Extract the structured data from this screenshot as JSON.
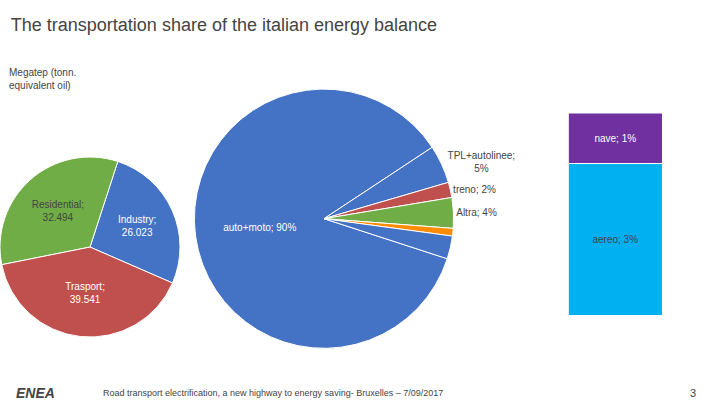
{
  "chart_data": [
    {
      "type": "pie",
      "title": "The transportation share of the italian energy balance",
      "annotations": [
        "Megatep (tonn.\nequivalent oil)",
        "ENEA",
        "Road transport electrification, a new highway to energy saving- Bruxelles – 7/09/2017",
        "3"
      ],
      "values": [
        26.023,
        32.494,
        39.541
      ],
      "value_labels": [
        "Industry;\n26.023",
        "Residential;\n32.494",
        "Trasport;\n39.541"
      ],
      "colors": [
        "#4472c4",
        "#70ad47",
        "#c0504d"
      ],
      "data_labels": true
    },
    {
      "type": "pie",
      "values": [
        90,
        5,
        2,
        4,
        1,
        3
      ],
      "value_labels": [
        "auto+moto; 90%",
        "TPL+autolinee;\n5%",
        "treno; 2%",
        "Altra; 4%",
        null,
        null
      ],
      "colors": [
        "#4472c4",
        "#4472c4",
        "#c0504d",
        "#70ad47",
        "#ff8c00",
        "#4472c4"
      ],
      "data_labels": true
    },
    {
      "type": "bar",
      "stacked": true,
      "categories": [
        null
      ],
      "series": [
        {
          "name": "aereo",
          "color": "#00b0f0",
          "values": [
            3
          ],
          "value_labels": [
            "aereo; 3%"
          ]
        },
        {
          "name": "nave",
          "color": "#7030a0",
          "values": [
            1
          ],
          "value_labels": [
            "nave; 1%"
          ]
        }
      ],
      "ylim": [
        0,
        4
      ],
      "tick_labels": false,
      "grid": false,
      "data_labels": true
    }
  ]
}
